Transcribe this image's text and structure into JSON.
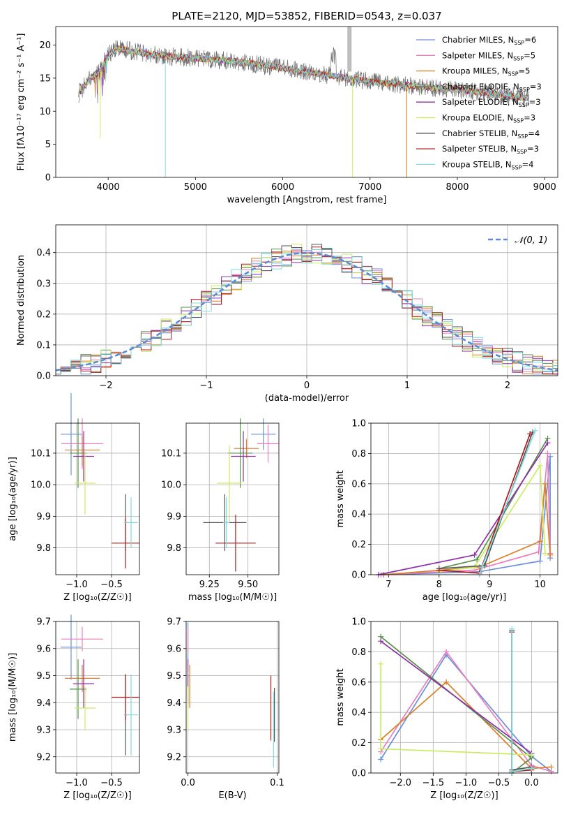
{
  "title": "PLATE=2120, MJD=53852, FIBERID=0543, z=0.037",
  "models": [
    {
      "name": "Chabrier MILES",
      "nssp": "6",
      "color": "#6c8fdb"
    },
    {
      "name": "Salpeter MILES",
      "nssp": "5",
      "color": "#e87fbf"
    },
    {
      "name": "Kroupa MILES",
      "nssp": "5",
      "color": "#d97f28"
    },
    {
      "name": "Chabrier ELODIE",
      "nssp": "3",
      "color": "#5a8f4a"
    },
    {
      "name": "Salpeter ELODIE",
      "nssp": "3",
      "color": "#8e2fa8"
    },
    {
      "name": "Kroupa ELODIE",
      "nssp": "3",
      "color": "#ccec60"
    },
    {
      "name": "Chabrier STELIB",
      "nssp": "4",
      "color": "#555555"
    },
    {
      "name": "Salpeter STELIB",
      "nssp": "3",
      "color": "#b01818"
    },
    {
      "name": "Kroupa STELIB",
      "nssp": "4",
      "color": "#7fdbe0"
    }
  ],
  "chart_data": [
    {
      "type": "line",
      "id": "spectrum",
      "xlabel": "wavelength [Angstrom, rest frame]",
      "ylabel": "Flux [fλ10⁻¹⁷ erg cm⁻² s⁻¹ A⁻¹]",
      "xlim": [
        3400,
        9150
      ],
      "ylim": [
        0,
        22.8
      ],
      "xticks": [
        4000,
        5000,
        6000,
        7000,
        8000,
        9000
      ],
      "yticks": [
        0,
        5,
        10,
        15,
        20
      ],
      "continuum": {
        "x": [
          3650,
          3800,
          3900,
          4000,
          4100,
          4300,
          4500,
          5000,
          5500,
          6000,
          6500,
          7000,
          7500,
          8000,
          8500,
          8800
        ],
        "y": [
          12.5,
          15,
          16,
          18.5,
          19.5,
          19,
          18.5,
          18,
          17.5,
          16.5,
          15.5,
          14.5,
          13.8,
          13.3,
          12.5,
          12
        ]
      },
      "features": [
        {
          "label": "Kroupa ELODIE",
          "x": 3910,
          "y_end": 6
        },
        {
          "label": "Kroupa STELIB",
          "x": 4655,
          "y_end": 0
        },
        {
          "label": "Kroupa ELODIE",
          "x": 6800,
          "y_end": 0
        },
        {
          "label": "Kroupa MILES",
          "x": 7420,
          "y_end": 0
        }
      ]
    },
    {
      "type": "histogram",
      "id": "residuals",
      "xlabel": "(data-model)/error",
      "ylabel": "Normed distribution",
      "xlim": [
        -2.5,
        2.5
      ],
      "ylim": [
        0,
        0.49
      ],
      "xticks": [
        -2,
        -1,
        0,
        1,
        2
      ],
      "yticks": [
        0.0,
        0.1,
        0.2,
        0.3,
        0.4
      ],
      "legend": "𝒩(0, 1)",
      "bin_width": 0.1
    },
    {
      "type": "scatter",
      "id": "age-vs-Z",
      "xlabel": "Z [log₁₀(Z/Z☉)]",
      "ylabel": "age  [log₁₀(age/yr)]",
      "xlim": [
        -1.3,
        -0.1
      ],
      "ylim": [
        9.715,
        10.195
      ],
      "xticks": [
        -1.0,
        -0.5
      ],
      "yticks": [
        9.8,
        9.9,
        10.0,
        10.1
      ],
      "points": [
        {
          "x": -1.08,
          "y": 10.16,
          "xerr": 0.15,
          "yerr": 0.13
        },
        {
          "x": -0.92,
          "y": 10.13,
          "xerr": 0.3,
          "yerr": 0.08
        },
        {
          "x": -0.92,
          "y": 10.11,
          "xerr": 0.25,
          "yerr": 0.05
        },
        {
          "x": -0.98,
          "y": 10.1,
          "xerr": 0.12,
          "yerr": 0.11
        },
        {
          "x": -0.9,
          "y": 10.09,
          "xerr": 0.15,
          "yerr": 0.08
        },
        {
          "x": -0.88,
          "y": 10.005,
          "xerr": 0.15,
          "yerr": 0.1
        },
        {
          "x": -0.3,
          "y": 9.88,
          "xerr": 0.02,
          "yerr": 0.09
        },
        {
          "x": -0.3,
          "y": 9.815,
          "xerr": 0.2,
          "yerr": 0.08
        },
        {
          "x": -0.22,
          "y": 9.88,
          "xerr": 0.1,
          "yerr": 0.08
        }
      ]
    },
    {
      "type": "scatter",
      "id": "age-vs-mass",
      "xlabel": "mass [log₁₀(M/M☉)]",
      "ylabel": "",
      "xlim": [
        9.1,
        9.7
      ],
      "ylim": [
        9.715,
        10.195
      ],
      "xticks": [
        9.25,
        9.5
      ],
      "yticks": [
        9.8,
        9.9,
        10.0,
        10.1
      ],
      "points": [
        {
          "x": 9.6,
          "y": 10.16,
          "xerr": 0.08,
          "yerr": 0.05
        },
        {
          "x": 9.63,
          "y": 10.13,
          "xerr": 0.07,
          "yerr": 0.06
        },
        {
          "x": 9.49,
          "y": 10.115,
          "xerr": 0.08,
          "yerr": 0.03
        },
        {
          "x": 9.45,
          "y": 10.1,
          "xerr": 0.08,
          "yerr": 0.11
        },
        {
          "x": 9.47,
          "y": 10.09,
          "xerr": 0.08,
          "yerr": 0.08
        },
        {
          "x": 9.38,
          "y": 10.005,
          "xerr": 0.08,
          "yerr": 0.12
        },
        {
          "x": 9.35,
          "y": 9.88,
          "xerr": 0.14,
          "yerr": 0.09
        },
        {
          "x": 9.42,
          "y": 9.815,
          "xerr": 0.13,
          "yerr": 0.09
        },
        {
          "x": 9.36,
          "y": 9.88,
          "xerr": 0.02,
          "yerr": 0.08
        }
      ]
    },
    {
      "type": "line",
      "id": "massweight-vs-age",
      "xlabel": "age  [log₁₀(age/yr)]",
      "ylabel": "mass weight",
      "xlim": [
        6.65,
        10.35
      ],
      "ylim": [
        0,
        1.0
      ],
      "xticks": [
        7,
        8,
        9,
        10
      ],
      "yticks": [
        0.0,
        0.2,
        0.4,
        0.6,
        0.8,
        1.0
      ],
      "series": [
        {
          "x": [
            6.9,
            8.8,
            10.0,
            10.2,
            10.2
          ],
          "y": [
            0.0,
            0.02,
            0.09,
            0.78,
            0.11
          ]
        },
        {
          "x": [
            6.85,
            8.7,
            9.97,
            10.15,
            10.2
          ],
          "y": [
            0.0,
            0.03,
            0.15,
            0.8,
            0.14
          ]
        },
        {
          "x": [
            6.9,
            8.8,
            10.0,
            10.1,
            10.2
          ],
          "y": [
            0.0,
            0.05,
            0.22,
            0.6,
            0.13
          ]
        },
        {
          "x": [
            8.0,
            8.75,
            10.15
          ],
          "y": [
            0.04,
            0.1,
            0.9
          ]
        },
        {
          "x": [
            6.8,
            8.7,
            10.15
          ],
          "y": [
            0.0,
            0.13,
            0.87
          ]
        },
        {
          "x": [
            8.0,
            8.7,
            10.0,
            10.1
          ],
          "y": [
            0.02,
            0.05,
            0.72,
            0.14
          ]
        },
        {
          "x": [
            8.0,
            8.9,
            9.85
          ],
          "y": [
            0.04,
            0.06,
            0.94
          ]
        },
        {
          "x": [
            8.0,
            8.8,
            9.8
          ],
          "y": [
            0.03,
            0.01,
            0.93
          ]
        },
        {
          "x": [
            8.8,
            8.85,
            9.9
          ],
          "y": [
            0.0,
            0.05,
            0.95
          ]
        }
      ]
    },
    {
      "type": "scatter",
      "id": "mass-vs-Z",
      "xlabel": "Z [log₁₀(Z/Z☉)]",
      "ylabel": "mass [log₁₀(M/M☉)]",
      "xlim": [
        -1.3,
        -0.1
      ],
      "ylim": [
        9.14,
        9.7
      ],
      "xticks": [
        -1.0,
        -0.5
      ],
      "yticks": [
        9.2,
        9.3,
        9.4,
        9.5,
        9.6,
        9.7
      ],
      "points": [
        {
          "x": -1.08,
          "y": 9.605,
          "xerr": 0.15,
          "yerr": 0.12
        },
        {
          "x": -0.92,
          "y": 9.635,
          "xerr": 0.3,
          "yerr": 0.045
        },
        {
          "x": -0.92,
          "y": 9.49,
          "xerr": 0.25,
          "yerr": 0.05
        },
        {
          "x": -0.98,
          "y": 9.45,
          "xerr": 0.12,
          "yerr": 0.11
        },
        {
          "x": -0.9,
          "y": 9.47,
          "xerr": 0.15,
          "yerr": 0.09
        },
        {
          "x": -0.88,
          "y": 9.38,
          "xerr": 0.15,
          "yerr": 0.08
        },
        {
          "x": -0.3,
          "y": 9.355,
          "xerr": 0.02,
          "yerr": 0.15
        },
        {
          "x": -0.3,
          "y": 9.42,
          "xerr": 0.2,
          "yerr": 0.085
        },
        {
          "x": -0.22,
          "y": 9.355,
          "xerr": 0.1,
          "yerr": 0.15
        }
      ]
    },
    {
      "type": "scatter",
      "id": "mass-vs-ebv",
      "xlabel": "E(B-V)",
      "ylabel": "",
      "xlim": [
        -0.002,
        0.102
      ],
      "ylim": [
        9.14,
        9.7
      ],
      "xticks": [
        0.0,
        0.1
      ],
      "yticks": [
        9.2,
        9.3,
        9.4,
        9.5,
        9.6,
        9.7
      ],
      "points": [
        {
          "x": 0.0,
          "y": 9.605,
          "xerr": 0,
          "yerr": 0.09
        },
        {
          "x": 0.0,
          "y": 9.635,
          "xerr": 0,
          "yerr": 0.045
        },
        {
          "x": 0.002,
          "y": 9.46,
          "xerr": 0,
          "yerr": 0.08
        },
        {
          "x": 0.0,
          "y": 9.45,
          "xerr": 0,
          "yerr": 0.05
        },
        {
          "x": 0.0,
          "y": 9.47,
          "xerr": 0,
          "yerr": 0.09
        },
        {
          "x": 0.0,
          "y": 9.38,
          "xerr": 0,
          "yerr": 0.08
        },
        {
          "x": 0.097,
          "y": 9.355,
          "xerr": 0,
          "yerr": 0.1
        },
        {
          "x": 0.093,
          "y": 9.38,
          "xerr": 0,
          "yerr": 0.12
        },
        {
          "x": 0.096,
          "y": 9.3,
          "xerr": 0,
          "yerr": 0.14
        }
      ]
    },
    {
      "type": "line",
      "id": "massweight-vs-Z",
      "xlabel": "Z [log₁₀(Z/Z☉)]",
      "ylabel": "mass weight",
      "xlim": [
        -2.45,
        0.4
      ],
      "ylim": [
        0,
        1.0
      ],
      "xticks": [
        -2.0,
        -1.5,
        -1.0,
        -0.5,
        0.0
      ],
      "yticks": [
        0.0,
        0.2,
        0.4,
        0.6,
        0.8,
        1.0
      ],
      "series": [
        {
          "x": [
            -2.3,
            -1.3,
            0.0,
            0.3
          ],
          "y": [
            0.09,
            0.78,
            0.11,
            0.01
          ]
        },
        {
          "x": [
            -2.3,
            -1.3,
            0.0,
            0.3
          ],
          "y": [
            0.14,
            0.8,
            0.05,
            0.01
          ]
        },
        {
          "x": [
            -2.3,
            -1.3,
            0.0,
            0.3
          ],
          "y": [
            0.22,
            0.6,
            0.03,
            0.04
          ]
        },
        {
          "x": [
            -2.3,
            0.0,
            -0.3
          ],
          "y": [
            0.9,
            0.1,
            0.0
          ]
        },
        {
          "x": [
            -2.3,
            0.0
          ],
          "y": [
            0.87,
            0.13
          ]
        },
        {
          "x": [
            -2.3,
            -2.3,
            0.0
          ],
          "y": [
            0.72,
            0.16,
            0.12
          ]
        },
        {
          "x": [
            -0.3,
            -0.3,
            0.0
          ],
          "y": [
            0.94,
            0.02,
            0.04
          ]
        },
        {
          "x": [
            -0.3,
            -0.3,
            0.0
          ],
          "y": [
            0.93,
            0.01,
            0.02
          ]
        },
        {
          "x": [
            -0.3,
            -0.3,
            0.0
          ],
          "y": [
            0.95,
            0.01,
            0.03
          ]
        }
      ]
    }
  ]
}
